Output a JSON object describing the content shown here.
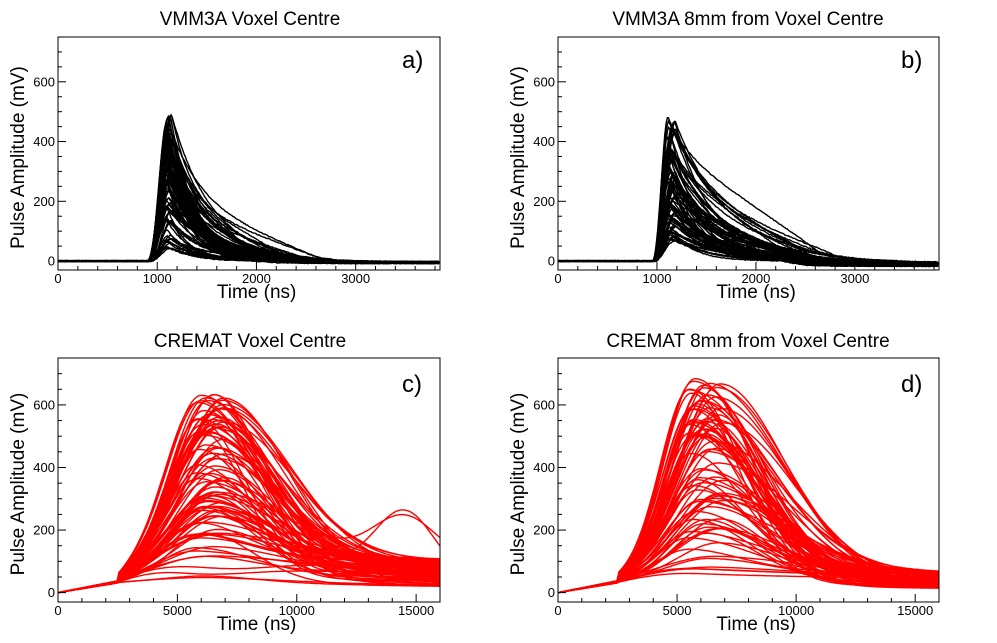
{
  "chart_data": [
    {
      "panel_label": "a)",
      "title": "VMM3A Voxel Centre",
      "type": "line",
      "xlabel": "Time (ns)",
      "ylabel": "Pulse Amplitude (mV)",
      "xlim": [
        0,
        3850
      ],
      "ylim": [
        -30,
        750
      ],
      "xticks": [
        0,
        1000,
        2000,
        3000
      ],
      "xtick_labels": [
        "0",
        "1000",
        "2000",
        "3000"
      ],
      "yticks": [
        0,
        200,
        400,
        600
      ],
      "ytick_labels": [
        "0",
        "200",
        "400",
        "600"
      ],
      "color": "#000000",
      "pulse_family": {
        "n_traces": 90,
        "baseline": 0,
        "onset": 900,
        "rise": 240,
        "peak_time_range": [
          1090,
          1150
        ],
        "peak_amplitude_range": [
          30,
          490
        ],
        "decay_tau_range": [
          180,
          450
        ],
        "tail_amplitude_range": [
          0,
          140
        ],
        "tail_end_range": [
          1900,
          2700
        ],
        "undershoot": 5
      }
    },
    {
      "panel_label": "b)",
      "title": "VMM3A 8mm from Voxel Centre",
      "type": "line",
      "xlabel": "Time (ns)",
      "ylabel": "Pulse Amplitude (mV)",
      "xlim": [
        0,
        3850
      ],
      "ylim": [
        -30,
        750
      ],
      "xticks": [
        0,
        1000,
        2000,
        3000
      ],
      "xtick_labels": [
        "0",
        "1000",
        "2000",
        "3000"
      ],
      "yticks": [
        0,
        200,
        400,
        600
      ],
      "ytick_labels": [
        "0",
        "200",
        "400",
        "600"
      ],
      "color": "#000000",
      "pulse_family": {
        "n_traces": 80,
        "baseline": 0,
        "onset": 950,
        "rise": 200,
        "peak_time_range": [
          1100,
          1200
        ],
        "peak_amplitude_range": [
          40,
          490
        ],
        "decay_tau_range": [
          220,
          650
        ],
        "tail_amplitude_range": [
          10,
          100
        ],
        "tail_end_range": [
          2200,
          2900
        ],
        "undershoot": 12
      }
    },
    {
      "panel_label": "c)",
      "title": "CREMAT Voxel Centre",
      "type": "line",
      "xlabel": "Time (ns)",
      "ylabel": "Pulse Amplitude (mV)",
      "xlim": [
        0,
        16000
      ],
      "ylim": [
        -30,
        750
      ],
      "xticks": [
        0,
        5000,
        10000,
        15000
      ],
      "xtick_labels": [
        "0",
        "5000",
        "10000",
        "15000"
      ],
      "yticks": [
        0,
        200,
        400,
        600
      ],
      "ytick_labels": [
        "0",
        "200",
        "400",
        "600"
      ],
      "color": "#ff0000",
      "pulse_family": {
        "n_traces": 90,
        "baseline": 0,
        "onset": 2500,
        "peak_time_range": [
          5800,
          7000
        ],
        "peak_amplitude_range": [
          40,
          630
        ],
        "decay_width_range": [
          2500,
          4200
        ],
        "tail_amplitude_range": [
          20,
          150
        ],
        "secondary_pulse": {
          "time": 14500,
          "amplitude": 255
        }
      }
    },
    {
      "panel_label": "d)",
      "title": "CREMAT 8mm from Voxel Centre",
      "type": "line",
      "xlabel": "Time (ns)",
      "ylabel": "Pulse Amplitude (mV)",
      "xlim": [
        0,
        16000
      ],
      "ylim": [
        -30,
        750
      ],
      "xticks": [
        0,
        5000,
        10000,
        15000
      ],
      "xtick_labels": [
        "0",
        "5000",
        "10000",
        "15000"
      ],
      "yticks": [
        0,
        200,
        400,
        600
      ],
      "ytick_labels": [
        "0",
        "200",
        "400",
        "600"
      ],
      "color": "#ff0000",
      "pulse_family": {
        "n_traces": 80,
        "baseline": 0,
        "onset": 2500,
        "peak_time_range": [
          5500,
          7000
        ],
        "peak_amplitude_range": [
          50,
          680
        ],
        "decay_width_range": [
          2800,
          4500
        ],
        "tail_amplitude_range": [
          15,
          90
        ]
      }
    }
  ]
}
